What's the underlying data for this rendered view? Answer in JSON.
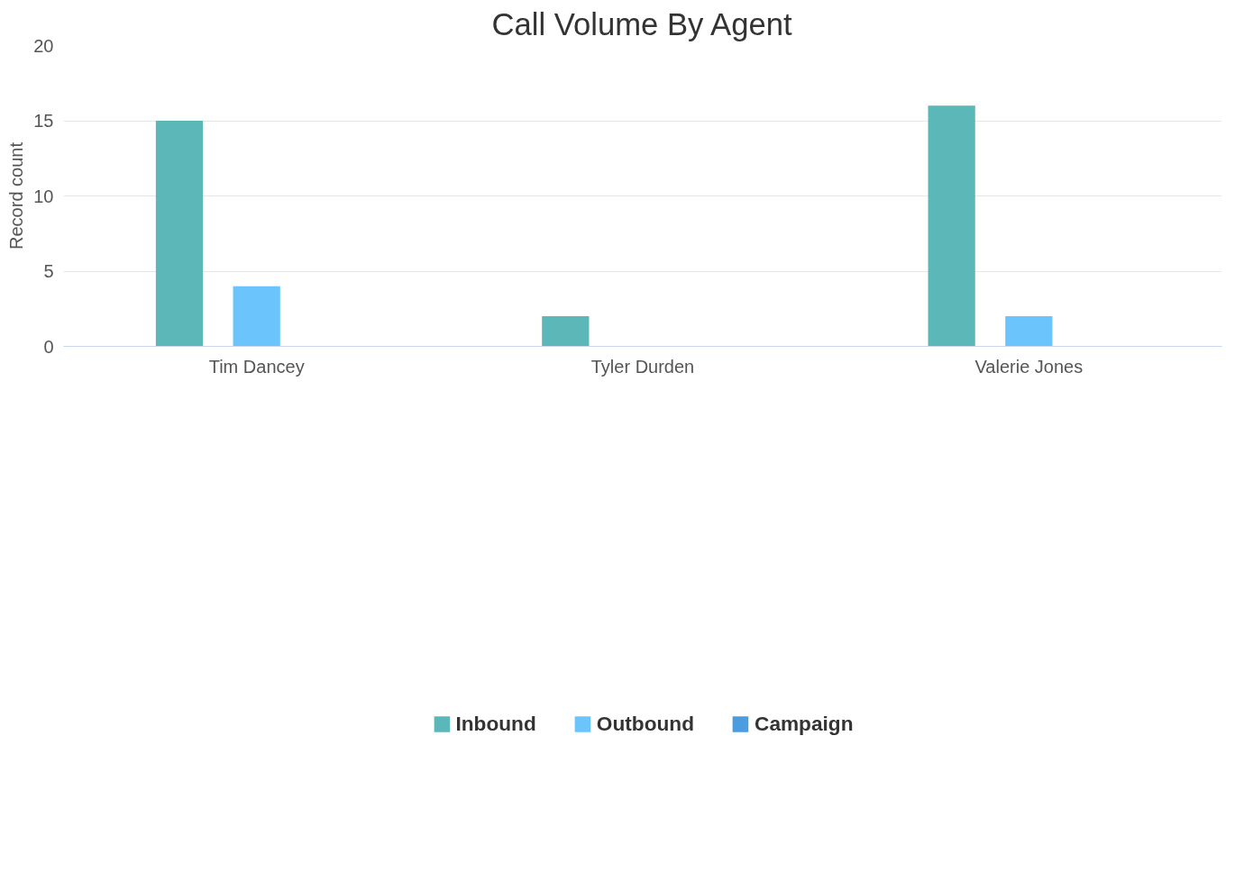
{
  "chart_data": {
    "type": "bar",
    "title": "Call Volume By Agent",
    "ylabel": "Record count",
    "categories": [
      "Tim Dancey",
      "Tyler Durden",
      "Valerie Jones"
    ],
    "series": [
      {
        "name": "Inbound",
        "color": "#5cb8b8",
        "values": [
          15,
          2,
          16
        ]
      },
      {
        "name": "Outbound",
        "color": "#6bc4fb",
        "values": [
          4,
          0,
          2
        ]
      },
      {
        "name": "Campaign",
        "color": "#4a9de0",
        "values": [
          0,
          0,
          0
        ]
      }
    ],
    "ylim": [
      0,
      20
    ],
    "yticks": [
      0,
      5,
      10,
      15,
      20
    ],
    "grid": "y",
    "legend": "bottom"
  }
}
